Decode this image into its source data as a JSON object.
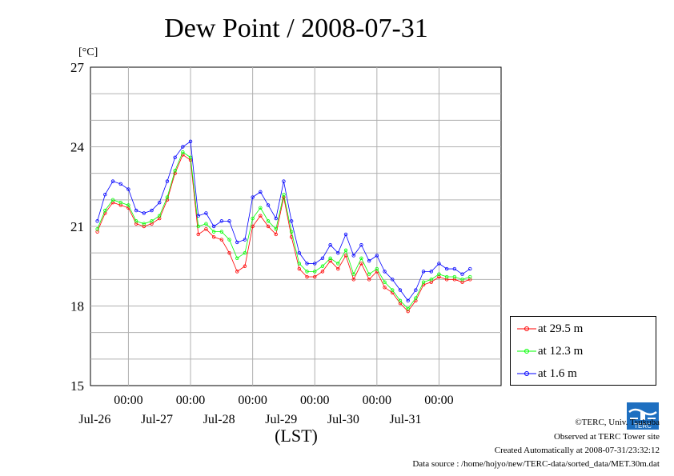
{
  "chart_data": {
    "type": "line",
    "title": "Dew Point / 2008-07-31",
    "unit_label": "[°C]",
    "xlabel": "(LST)",
    "ylim": [
      15,
      27
    ],
    "y_ticks": [
      15,
      18,
      21,
      24,
      27
    ],
    "grid": true,
    "legend_position": "right",
    "x_ticks": [
      {
        "time": "00:00",
        "date": "Jul-26"
      },
      {
        "time": "00:00",
        "date": "Jul-27"
      },
      {
        "time": "00:00",
        "date": "Jul-28"
      },
      {
        "time": "00:00",
        "date": "Jul-29"
      },
      {
        "time": "00:00",
        "date": "Jul-30"
      },
      {
        "time": "00:00",
        "date": "Jul-31"
      }
    ],
    "x": [
      "Jul-25 12:00",
      "Jul-25 15:00",
      "Jul-25 18:00",
      "Jul-25 21:00",
      "Jul-26 00:00",
      "Jul-26 03:00",
      "Jul-26 06:00",
      "Jul-26 09:00",
      "Jul-26 12:00",
      "Jul-26 15:00",
      "Jul-26 18:00",
      "Jul-26 21:00",
      "Jul-27 00:00",
      "Jul-27 03:00",
      "Jul-27 06:00",
      "Jul-27 09:00",
      "Jul-27 12:00",
      "Jul-27 15:00",
      "Jul-27 18:00",
      "Jul-27 21:00",
      "Jul-28 00:00",
      "Jul-28 03:00",
      "Jul-28 06:00",
      "Jul-28 09:00",
      "Jul-28 12:00",
      "Jul-28 15:00",
      "Jul-28 18:00",
      "Jul-28 21:00",
      "Jul-29 00:00",
      "Jul-29 03:00",
      "Jul-29 06:00",
      "Jul-29 09:00",
      "Jul-29 12:00",
      "Jul-29 15:00",
      "Jul-29 18:00",
      "Jul-29 21:00",
      "Jul-30 00:00",
      "Jul-30 03:00",
      "Jul-30 06:00",
      "Jul-30 09:00",
      "Jul-30 12:00",
      "Jul-30 15:00",
      "Jul-30 18:00",
      "Jul-30 21:00",
      "Jul-31 00:00",
      "Jul-31 03:00",
      "Jul-31 06:00",
      "Jul-31 09:00",
      "Jul-31 12:00"
    ],
    "series": [
      {
        "name": "at 29.5 m",
        "color": "#ff0000",
        "values": [
          20.8,
          21.5,
          21.9,
          21.8,
          21.7,
          21.1,
          21.0,
          21.1,
          21.3,
          22.0,
          23.0,
          23.7,
          23.5,
          20.7,
          20.9,
          20.6,
          20.5,
          20.0,
          19.3,
          19.5,
          21.0,
          21.4,
          21.0,
          20.7,
          22.1,
          20.6,
          19.4,
          19.1,
          19.1,
          19.3,
          19.7,
          19.4,
          19.9,
          19.0,
          19.6,
          19.0,
          19.3,
          18.7,
          18.5,
          18.1,
          17.8,
          18.2,
          18.8,
          18.9,
          19.1,
          19.0,
          19.0,
          18.9,
          19.0
        ]
      },
      {
        "name": "at 12.3 m",
        "color": "#00ff00",
        "values": [
          20.9,
          21.6,
          22.0,
          21.9,
          21.8,
          21.2,
          21.1,
          21.2,
          21.4,
          22.1,
          23.1,
          23.8,
          23.6,
          21.0,
          21.1,
          20.8,
          20.8,
          20.5,
          19.8,
          20.0,
          21.3,
          21.7,
          21.2,
          20.9,
          22.2,
          20.8,
          19.6,
          19.3,
          19.3,
          19.5,
          19.8,
          19.6,
          20.1,
          19.2,
          19.8,
          19.2,
          19.4,
          18.9,
          18.6,
          18.2,
          17.9,
          18.3,
          18.9,
          19.0,
          19.2,
          19.1,
          19.1,
          19.0,
          19.1
        ]
      },
      {
        "name": "at 1.6 m",
        "color": "#0000ff",
        "values": [
          21.2,
          22.2,
          22.7,
          22.6,
          22.4,
          21.6,
          21.5,
          21.6,
          21.9,
          22.7,
          23.6,
          24.0,
          24.2,
          21.4,
          21.5,
          21.0,
          21.2,
          21.2,
          20.4,
          20.5,
          22.1,
          22.3,
          21.8,
          21.3,
          22.7,
          21.2,
          20.0,
          19.6,
          19.6,
          19.8,
          20.3,
          20.0,
          20.7,
          19.9,
          20.3,
          19.7,
          19.9,
          19.3,
          19.0,
          18.6,
          18.2,
          18.6,
          19.3,
          19.3,
          19.6,
          19.4,
          19.4,
          19.2,
          19.4
        ]
      }
    ]
  },
  "footer": {
    "copyright": "©TERC, Univ. Tsukuba",
    "observed": "Observed at TERC Tower site",
    "created": "Created Automatically at 2008-07-31/23:32:12",
    "source": "Data source : /home/hojyo/new/TERC-data/sorted_data/MET.30m.dat",
    "logo_text": "TERC"
  }
}
